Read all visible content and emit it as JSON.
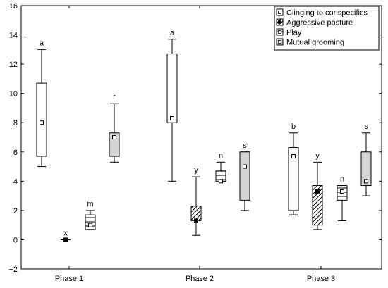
{
  "chart_data": {
    "type": "boxplot",
    "title": "",
    "xlabel": "",
    "ylabel": "",
    "ylim": [
      -2,
      16
    ],
    "y_ticks": [
      -2,
      0,
      2,
      4,
      6,
      8,
      10,
      12,
      14,
      16
    ],
    "grid": false,
    "legend_position": "top-right",
    "categories": [
      "Phase 1",
      "Phase 2",
      "Phase 3"
    ],
    "series": [
      {
        "name": "Clinging to conspecifics",
        "fill": "hollow",
        "boxes": [
          {
            "category": "Phase 1",
            "min": 5,
            "q1": 5.7,
            "median": 8,
            "q3": 10.7,
            "max": 13,
            "label": "a"
          },
          {
            "category": "Phase 2",
            "min": 4,
            "q1": 8,
            "median": 8.3,
            "q3": 12.7,
            "max": 13.7,
            "label": "a"
          },
          {
            "category": "Phase 3",
            "min": 1.7,
            "q1": 2,
            "median": 5.7,
            "q3": 6.3,
            "max": 7.3,
            "label": "b"
          }
        ]
      },
      {
        "name": "Aggressive posture",
        "fill": "diagonal-hatch",
        "boxes": [
          {
            "category": "Phase 1",
            "min": 0,
            "q1": 0,
            "median": 0,
            "q3": 0,
            "max": 0,
            "label": "x"
          },
          {
            "category": "Phase 2",
            "min": 0.3,
            "q1": 1.3,
            "median": 1.3,
            "q3": 2.3,
            "max": 4.3,
            "label": "y"
          },
          {
            "category": "Phase 3",
            "min": 0.7,
            "q1": 1,
            "median": 3.3,
            "q3": 3.7,
            "max": 5.3,
            "label": "y"
          }
        ]
      },
      {
        "name": "Play",
        "fill": "horizontal-lines",
        "boxes": [
          {
            "category": "Phase 1",
            "min": 0.7,
            "q1": 0.7,
            "median": 1,
            "q3": 1.7,
            "max": 2,
            "label": "m"
          },
          {
            "category": "Phase 2",
            "min": 4,
            "q1": 4,
            "median": 4,
            "q3": 4.7,
            "max": 5.3,
            "label": "n"
          },
          {
            "category": "Phase 3",
            "min": 1.3,
            "q1": 2.7,
            "median": 3.3,
            "q3": 3.7,
            "max": 3.7,
            "label": "n"
          }
        ]
      },
      {
        "name": "Mutual grooming",
        "fill": "gray",
        "boxes": [
          {
            "category": "Phase 1",
            "min": 5.3,
            "q1": 5.7,
            "median": 7,
            "q3": 7.3,
            "max": 9.3,
            "label": "r"
          },
          {
            "category": "Phase 2",
            "min": 2,
            "q1": 2.7,
            "median": 5,
            "q3": 6,
            "max": 6,
            "label": "s"
          },
          {
            "category": "Phase 3",
            "min": 3,
            "q1": 3.7,
            "median": 4,
            "q3": 6,
            "max": 7.3,
            "label": "s"
          }
        ]
      }
    ]
  },
  "colors": {
    "stroke": "#000000",
    "gray_fill": "#d4d4d4",
    "background": "#ffffff"
  }
}
